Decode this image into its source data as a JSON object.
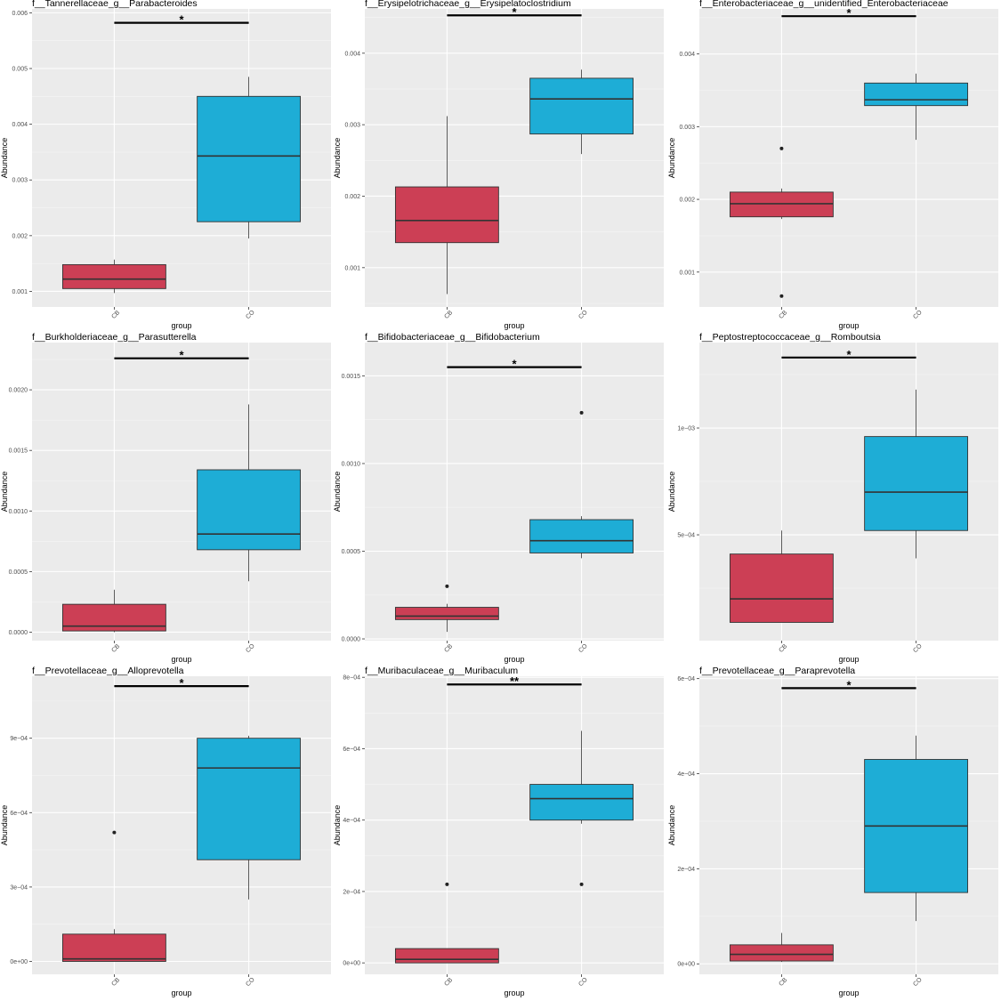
{
  "page": {
    "background": "#ffffff",
    "panel_background": "#ebebeb",
    "grid_color": "#ffffff"
  },
  "colors": {
    "CB": "#cc3f55",
    "CO": "#1eadd6",
    "box_outline": "#333333",
    "whisker": "#333333",
    "bracket": "#000000"
  },
  "chart_data": [
    {
      "type": "box",
      "title": "f__Tannerellaceae_g__Parabacteroides",
      "xlabel": "group",
      "ylabel": "Abundance",
      "categories": [
        "CB",
        "CO"
      ],
      "ylim": [
        0.00072,
        0.00607
      ],
      "yticks": [
        0.001,
        0.002,
        0.003,
        0.004,
        0.005,
        0.006
      ],
      "yticklabels": [
        "0.001",
        "0.002",
        "0.003",
        "0.004",
        "0.005",
        "0.006"
      ],
      "boxes": [
        {
          "group": "CB",
          "whisker_low": 0.00097,
          "q1": 0.00105,
          "median": 0.00122,
          "q3": 0.00148,
          "whisker_high": 0.00157,
          "outliers": []
        },
        {
          "group": "CO",
          "whisker_low": 0.00195,
          "q1": 0.00225,
          "median": 0.00343,
          "q3": 0.0045,
          "whisker_high": 0.00485,
          "outliers": []
        }
      ],
      "significance": {
        "y": 0.00582,
        "label": "*"
      },
      "grid": true
    },
    {
      "type": "box",
      "title": "f__Erysipelotrichaceae_g__Erysipelatoclostridium",
      "xlabel": "group",
      "ylabel": "Abundance",
      "categories": [
        "CB",
        "CO"
      ],
      "ylim": [
        0.00045,
        0.00462
      ],
      "yticks": [
        0.001,
        0.002,
        0.003,
        0.004
      ],
      "yticklabels": [
        "0.001",
        "0.002",
        "0.003",
        "0.004"
      ],
      "boxes": [
        {
          "group": "CB",
          "whisker_low": 0.00063,
          "q1": 0.00135,
          "median": 0.00166,
          "q3": 0.00213,
          "whisker_high": 0.00312,
          "outliers": []
        },
        {
          "group": "CO",
          "whisker_low": 0.00259,
          "q1": 0.00287,
          "median": 0.00336,
          "q3": 0.00365,
          "whisker_high": 0.00377,
          "outliers": []
        }
      ],
      "significance": {
        "y": 0.00453,
        "label": "*"
      },
      "grid": true
    },
    {
      "type": "box",
      "title": "f__Enterobacteriaceae_g__unidentified_Enterobacteriaceae",
      "xlabel": "group",
      "ylabel": "Abundance",
      "categories": [
        "CB",
        "CO"
      ],
      "ylim": [
        0.00052,
        0.00462
      ],
      "yticks": [
        0.001,
        0.002,
        0.003,
        0.004
      ],
      "yticklabels": [
        "0.001",
        "0.002",
        "0.003",
        "0.004"
      ],
      "boxes": [
        {
          "group": "CB",
          "whisker_low": 0.00173,
          "q1": 0.00176,
          "median": 0.00194,
          "q3": 0.0021,
          "whisker_high": 0.00215,
          "outliers": [
            0.0027,
            0.00067
          ]
        },
        {
          "group": "CO",
          "whisker_low": 0.00282,
          "q1": 0.00329,
          "median": 0.00337,
          "q3": 0.0036,
          "whisker_high": 0.00373,
          "outliers": []
        }
      ],
      "significance": {
        "y": 0.00452,
        "label": "*"
      },
      "grid": true
    },
    {
      "type": "box",
      "title": "f__Burkholderiaceae_g__Parasutterella",
      "xlabel": "group",
      "ylabel": "Abundance",
      "categories": [
        "CB",
        "CO"
      ],
      "ylim": [
        -7e-05,
        0.00239
      ],
      "yticks": [
        0.0,
        0.0005,
        0.001,
        0.0015,
        0.002
      ],
      "yticklabels": [
        "0.0000",
        "0.0005",
        "0.0010",
        "0.0015",
        "0.0020"
      ],
      "boxes": [
        {
          "group": "CB",
          "whisker_low": 0.0,
          "q1": 1e-05,
          "median": 5e-05,
          "q3": 0.00023,
          "whisker_high": 0.00035,
          "outliers": []
        },
        {
          "group": "CO",
          "whisker_low": 0.00042,
          "q1": 0.00068,
          "median": 0.00081,
          "q3": 0.00134,
          "whisker_high": 0.00188,
          "outliers": []
        }
      ],
      "significance": {
        "y": 0.00226,
        "label": "*"
      },
      "grid": true
    },
    {
      "type": "box",
      "title": "f__Bifidobacteriaceae_g__Bifidobacterium",
      "xlabel": "group",
      "ylabel": "Abundance",
      "categories": [
        "CB",
        "CO"
      ],
      "ylim": [
        -1e-05,
        0.00169
      ],
      "yticks": [
        0.0,
        0.0005,
        0.001,
        0.0015
      ],
      "yticklabels": [
        "0.0000",
        "0.0005",
        "0.0010",
        "0.0015"
      ],
      "boxes": [
        {
          "group": "CB",
          "whisker_low": 4e-05,
          "q1": 0.00011,
          "median": 0.00013,
          "q3": 0.00018,
          "whisker_high": 0.0002,
          "outliers": [
            0.0003
          ]
        },
        {
          "group": "CO",
          "whisker_low": 0.00046,
          "q1": 0.00049,
          "median": 0.00056,
          "q3": 0.00068,
          "whisker_high": 0.0007,
          "outliers": [
            0.00129
          ]
        }
      ],
      "significance": {
        "y": 0.00155,
        "label": "*"
      },
      "grid": true
    },
    {
      "type": "box",
      "title": "f__Peptostreptococcaceae_g__Romboutsia",
      "xlabel": "group",
      "ylabel": "Abundance",
      "categories": [
        "CB",
        "CO"
      ],
      "ylim": [
        4.5e-06,
        0.0014
      ],
      "yticks": [
        0.0005,
        0.001
      ],
      "yticklabels": [
        "5e−04",
        "1e−03"
      ],
      "boxes": [
        {
          "group": "CB",
          "whisker_low": 9e-05,
          "q1": 9e-05,
          "median": 0.0002,
          "q3": 0.00041,
          "whisker_high": 0.00052,
          "outliers": []
        },
        {
          "group": "CO",
          "whisker_low": 0.00039,
          "q1": 0.00052,
          "median": 0.0007,
          "q3": 0.00096,
          "whisker_high": 0.00118,
          "outliers": []
        }
      ],
      "significance": {
        "y": 0.00133,
        "label": "*"
      },
      "grid": true
    },
    {
      "type": "box",
      "title": "f__Prevotellaceae_g__Alloprevotella",
      "xlabel": "group",
      "ylabel": "Abundance",
      "categories": [
        "CB",
        "CO"
      ],
      "ylim": [
        -5.2e-05,
        0.00115
      ],
      "yticks": [
        0.0,
        0.0003,
        0.0006,
        0.0009
      ],
      "yticklabels": [
        "0e+00",
        "3e−04",
        "6e−04",
        "9e−04"
      ],
      "boxes": [
        {
          "group": "CB",
          "whisker_low": 0.0,
          "q1": 0.0,
          "median": 1e-05,
          "q3": 0.00011,
          "whisker_high": 0.00013,
          "outliers": [
            0.00052
          ]
        },
        {
          "group": "CO",
          "whisker_low": 0.00025,
          "q1": 0.00041,
          "median": 0.00078,
          "q3": 0.0009,
          "whisker_high": 0.00091,
          "outliers": []
        }
      ],
      "significance": {
        "y": 0.00111,
        "label": "*"
      },
      "grid": true
    },
    {
      "type": "box",
      "title": "f__Muribaculaceae_g__Muribaculum",
      "xlabel": "group",
      "ylabel": "Abundance",
      "categories": [
        "CB",
        "CO"
      ],
      "ylim": [
        -3.2e-05,
        0.000803
      ],
      "yticks": [
        0.0,
        0.0002,
        0.0004,
        0.0006,
        0.0008
      ],
      "yticklabels": [
        "0e+00",
        "2e−04",
        "4e−04",
        "6e−04",
        "8e−04"
      ],
      "boxes": [
        {
          "group": "CB",
          "whisker_low": 0.0,
          "q1": 0.0,
          "median": 1e-05,
          "q3": 4e-05,
          "whisker_high": 4e-05,
          "outliers": [
            0.00022
          ]
        },
        {
          "group": "CO",
          "whisker_low": 0.00039,
          "q1": 0.0004,
          "median": 0.00046,
          "q3": 0.0005,
          "whisker_high": 0.00065,
          "outliers": [
            0.00022
          ]
        }
      ],
      "significance": {
        "y": 0.00078,
        "label": "**"
      },
      "grid": true
    },
    {
      "type": "box",
      "title": "f__Prevotellaceae_g__Paraprevotella",
      "xlabel": "group",
      "ylabel": "Abundance",
      "categories": [
        "CB",
        "CO"
      ],
      "ylim": [
        -2.2e-05,
        0.000605
      ],
      "yticks": [
        0.0,
        0.0002,
        0.0004,
        0.0006
      ],
      "yticklabels": [
        "0e+00",
        "2e−04",
        "4e−04",
        "6e−04"
      ],
      "boxes": [
        {
          "group": "CB",
          "whisker_low": 4e-06,
          "q1": 6e-06,
          "median": 2e-05,
          "q3": 4e-05,
          "whisker_high": 6.5e-05,
          "outliers": []
        },
        {
          "group": "CO",
          "whisker_low": 9e-05,
          "q1": 0.00015,
          "median": 0.00029,
          "q3": 0.00043,
          "whisker_high": 0.00048,
          "outliers": []
        }
      ],
      "significance": {
        "y": 0.00058,
        "label": "*"
      },
      "grid": true
    }
  ]
}
